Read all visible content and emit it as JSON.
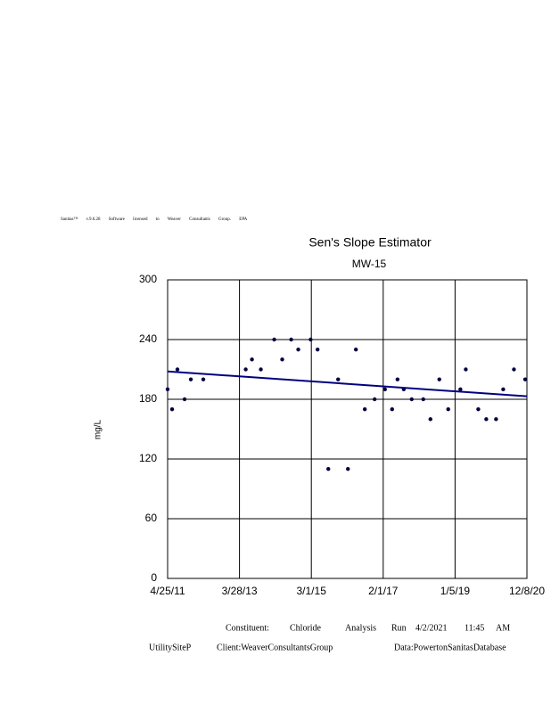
{
  "header": "Sanitas™ v.9.6.28 Software licensed to Weaver Consultants Group. EPA",
  "chart_data": {
    "type": "scatter",
    "title": "Sen's Slope Estimator",
    "subtitle": "MW-15",
    "y_label": "mg/L",
    "x": [
      "2011-04-25",
      "2011-06-08",
      "2011-07-30",
      "2011-10-08",
      "2011-12-08",
      "2012-04-08",
      "2013-05-28",
      "2013-07-28",
      "2013-10-23",
      "2014-03-03",
      "2014-05-20",
      "2014-08-16",
      "2014-10-24",
      "2015-02-22",
      "2015-05-01",
      "2015-08-14",
      "2015-11-18",
      "2016-02-22",
      "2016-05-10",
      "2016-08-05",
      "2016-11-09",
      "2017-02-18",
      "2017-04-29",
      "2017-06-21",
      "2017-08-21",
      "2017-11-07",
      "2018-02-28",
      "2018-05-09",
      "2018-08-04",
      "2018-10-30",
      "2019-02-26",
      "2019-04-20",
      "2019-08-20",
      "2019-11-06",
      "2020-02-10",
      "2020-04-20",
      "2020-08-03",
      "2020-11-21"
    ],
    "values": [
      190,
      170,
      210,
      180,
      200,
      200,
      210,
      220,
      210,
      240,
      220,
      240,
      230,
      240,
      230,
      110,
      200,
      110,
      230,
      170,
      180,
      190,
      170,
      200,
      190,
      180,
      180,
      160,
      200,
      170,
      190,
      210,
      170,
      160,
      160,
      190,
      210,
      200
    ],
    "color": "#000040",
    "trend_line": {
      "x": [
        "2011-04-25",
        "2020-12-08"
      ],
      "values": [
        208,
        183
      ],
      "color": "#000080"
    },
    "xlim": [
      "2011-04-25",
      "2020-12-08"
    ],
    "xticks": [
      {
        "value": "2011-04-25",
        "label": "4/25/11"
      },
      {
        "value": "2013-03-28",
        "label": "3/28/13"
      },
      {
        "value": "2015-03-01",
        "label": "3/1/15"
      },
      {
        "value": "2017-02-01",
        "label": "2/1/17"
      },
      {
        "value": "2019-01-05",
        "label": "1/5/19"
      },
      {
        "value": "2020-12-08",
        "label": "12/8/20"
      }
    ],
    "ylim": [
      0,
      300
    ],
    "yticks": [
      0,
      60,
      120,
      180,
      240,
      300
    ],
    "grid": true
  },
  "footer": {
    "constituent": "Constituent:",
    "constituent_value": "Chloride",
    "analysis": "Analysis",
    "run": "Run",
    "date": "4/2/2021",
    "time": "11:45",
    "ampm": "AM",
    "site": "UtilitySiteP",
    "client": "Client:WeaverConsultantsGroup",
    "data": "Data:PowertonSanitasDatabase"
  }
}
